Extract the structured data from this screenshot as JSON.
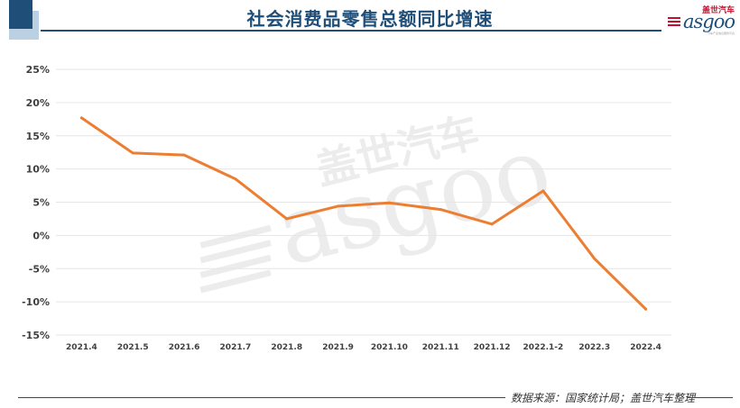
{
  "title": "社会消费品零售总额同比增速",
  "logo": {
    "cn": "盖世汽车",
    "en": "asgoo",
    "tagline": "汽车产业信息服务平台"
  },
  "watermark": {
    "cn": "盖世汽车",
    "en": "asgoo"
  },
  "source": "数据来源：国家统计局；盖世汽车整理",
  "colors": {
    "line": "#ed7d31",
    "title": "#1f4e79",
    "grid": "#e6e6e6",
    "axis_text": "#404040"
  },
  "chart_data": {
    "type": "line",
    "title": "社会消费品零售总额同比增速",
    "xlabel": "",
    "ylabel": "",
    "categories": [
      "2021.4",
      "2021.5",
      "2021.6",
      "2021.7",
      "2021.8",
      "2021.9",
      "2021.10",
      "2021.11",
      "2021.12",
      "2022.1-2",
      "2022.3",
      "2022.4"
    ],
    "series": [
      {
        "values": [
          17.7,
          12.4,
          12.1,
          8.5,
          2.5,
          4.4,
          4.9,
          3.9,
          1.7,
          6.7,
          -3.5,
          -11.1
        ]
      }
    ],
    "ylim": [
      -15,
      25
    ],
    "yticks": [
      -15,
      -10,
      -5,
      0,
      5,
      10,
      15,
      20,
      25
    ],
    "ytick_labels": [
      "-15%",
      "-10%",
      "-5%",
      "0%",
      "5%",
      "10%",
      "15%",
      "20%",
      "25%"
    ],
    "grid": true,
    "legend": "none"
  }
}
